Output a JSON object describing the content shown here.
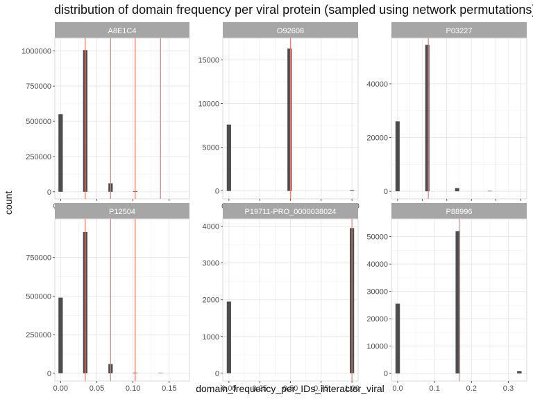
{
  "chart_data": {
    "type": "bar",
    "title": "distribution of domain frequency per viral protein (sampled using network permutations)",
    "xlabel": "domain_frequency_per_IDs_interactor_viral",
    "ylabel": "count",
    "colors": {
      "bar": "#4d4d4d",
      "vline": "#f8766d",
      "strip": "#a6a6a6",
      "strip_text": "#ffffff"
    },
    "panels": [
      {
        "name": "A8E1C4",
        "xlim": [
          -0.008,
          0.178
        ],
        "ylim": [
          -50000,
          1090000
        ],
        "xticks": [
          0.0,
          0.05,
          0.1,
          0.15
        ],
        "xtick_labels": [
          "0.00",
          "0.05",
          "0.10",
          "0.15"
        ],
        "yticks": [
          0,
          250000,
          500000,
          750000,
          1000000
        ],
        "ytick_labels": [
          "0",
          "250000",
          "500000",
          "750000",
          "1000000"
        ],
        "bin_width": 0.006,
        "bars": [
          {
            "x": 0.0,
            "y": 550000
          },
          {
            "x": 0.034,
            "y": 1005000
          },
          {
            "x": 0.069,
            "y": 60000
          },
          {
            "x": 0.103,
            "y": 4000
          }
        ],
        "vlines": [
          0.034,
          0.069,
          0.103,
          0.138
        ]
      },
      {
        "name": "O92608",
        "xlim": [
          -0.05,
          1.05
        ],
        "ylim": [
          -900,
          17500
        ],
        "xticks": [
          0.0,
          0.25,
          0.5,
          0.75,
          1.0
        ],
        "xtick_labels": [
          "0.00",
          "0.25",
          "0.50",
          "0.75",
          "1.00"
        ],
        "yticks": [
          0,
          5000,
          10000,
          15000
        ],
        "ytick_labels": [
          "0",
          "5000",
          "10000",
          "15000"
        ],
        "bin_width": 0.035,
        "bars": [
          {
            "x": 0.0,
            "y": 7600
          },
          {
            "x": 0.493,
            "y": 16300
          },
          {
            "x": 1.0,
            "y": 80
          }
        ],
        "vlines": [
          0.5
        ]
      },
      {
        "name": "P03227",
        "xlim": [
          -0.025,
          0.525
        ],
        "ylim": [
          -2800,
          57000
        ],
        "xticks": [
          0.0,
          0.1,
          0.2,
          0.3,
          0.4,
          0.5
        ],
        "xtick_labels": [
          "0.0",
          "0.1",
          "0.2",
          "0.3",
          "0.4",
          "0.5"
        ],
        "yticks": [
          0,
          20000,
          40000
        ],
        "ytick_labels": [
          "0",
          "20000",
          "40000"
        ],
        "bin_width": 0.017,
        "bars": [
          {
            "x": 0.0,
            "y": 26000
          },
          {
            "x": 0.121,
            "y": 54500
          },
          {
            "x": 0.242,
            "y": 1200
          },
          {
            "x": 0.375,
            "y": 60
          }
        ],
        "vlines": [
          0.125
        ]
      },
      {
        "name": "P12504",
        "xlim": [
          -0.008,
          0.178
        ],
        "ylim": [
          -50000,
          1000000
        ],
        "xticks": [
          0.0,
          0.05,
          0.1,
          0.15
        ],
        "xtick_labels": [
          "0.00",
          "0.05",
          "0.10",
          "0.15"
        ],
        "yticks": [
          0,
          250000,
          500000,
          750000
        ],
        "ytick_labels": [
          "0",
          "250000",
          "500000",
          "750000"
        ],
        "bin_width": 0.006,
        "bars": [
          {
            "x": 0.0,
            "y": 490000
          },
          {
            "x": 0.034,
            "y": 915000
          },
          {
            "x": 0.069,
            "y": 60000
          },
          {
            "x": 0.103,
            "y": 4000
          },
          {
            "x": 0.138,
            "y": 400
          }
        ],
        "vlines": [
          0.034,
          0.069,
          0.103
        ]
      },
      {
        "name": "P19711-PRO_0000038024",
        "xlim": [
          -0.05,
          1.05
        ],
        "ylim": [
          -210,
          4200
        ],
        "xticks": [
          0.0,
          0.25,
          0.5,
          0.75,
          1.0
        ],
        "xtick_labels": [
          "0.00",
          "0.25",
          "0.50",
          "0.75",
          "1.00"
        ],
        "yticks": [
          0,
          1000,
          2000,
          3000,
          4000
        ],
        "ytick_labels": [
          "0",
          "1000",
          "2000",
          "3000",
          "4000"
        ],
        "bin_width": 0.035,
        "bars": [
          {
            "x": 0.0,
            "y": 1950
          },
          {
            "x": 1.0,
            "y": 3950
          }
        ],
        "vlines": [
          1.0
        ]
      },
      {
        "name": "P88996",
        "xlim": [
          -0.017,
          0.35
        ],
        "ylim": [
          -2750,
          56500
        ],
        "xticks": [
          0.0,
          0.1,
          0.2,
          0.3
        ],
        "xtick_labels": [
          "0.0",
          "0.1",
          "0.2",
          "0.3"
        ],
        "yticks": [
          0,
          10000,
          20000,
          30000,
          40000,
          50000
        ],
        "ytick_labels": [
          "0",
          "10000",
          "20000",
          "30000",
          "40000",
          "50000"
        ],
        "bin_width": 0.012,
        "bars": [
          {
            "x": 0.0,
            "y": 25500
          },
          {
            "x": 0.163,
            "y": 52000
          },
          {
            "x": 0.33,
            "y": 800
          }
        ],
        "vlines": [
          0.167
        ]
      }
    ]
  }
}
